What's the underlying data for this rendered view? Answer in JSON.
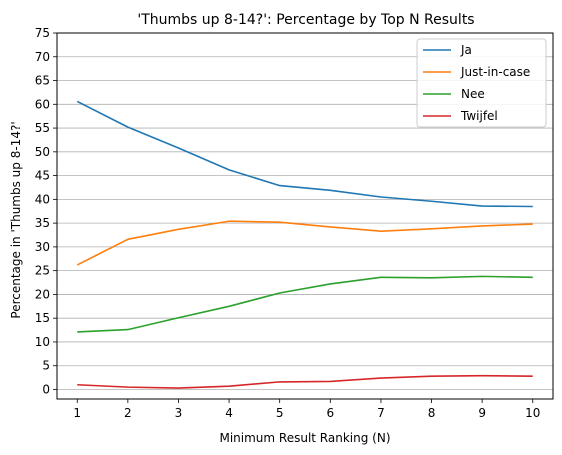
{
  "chart_data": {
    "type": "line",
    "title": "'Thumbs up 8-14?': Percentage by Top N Results",
    "xlabel": "Minimum Result Ranking (N)",
    "ylabel": "Percentage in 'Thumbs up 8-14?'",
    "x": [
      1,
      2,
      3,
      4,
      5,
      6,
      7,
      8,
      9,
      10
    ],
    "xlim": [
      0.6,
      10.4
    ],
    "ylim": [
      -2,
      75
    ],
    "yticks": [
      0,
      5,
      10,
      15,
      20,
      25,
      30,
      35,
      40,
      45,
      50,
      55,
      60,
      65,
      70,
      75
    ],
    "grid": "y",
    "legend_position": "top-right",
    "series": [
      {
        "name": "Ja",
        "color": "#1f77b4",
        "values": [
          60.6,
          55.2,
          50.8,
          46.2,
          42.9,
          41.9,
          40.5,
          39.6,
          38.6,
          38.5
        ]
      },
      {
        "name": "Just-in-case",
        "color": "#ff7f0e",
        "values": [
          26.2,
          31.6,
          33.7,
          35.4,
          35.2,
          34.2,
          33.3,
          33.8,
          34.4,
          34.8
        ]
      },
      {
        "name": "Nee",
        "color": "#2ca02c",
        "values": [
          12.1,
          12.6,
          15.1,
          17.5,
          20.3,
          22.2,
          23.6,
          23.5,
          23.8,
          23.6
        ]
      },
      {
        "name": "Twijfel",
        "color": "#d62728",
        "values": [
          1.0,
          0.5,
          0.3,
          0.7,
          1.6,
          1.7,
          2.4,
          2.8,
          2.9,
          2.8
        ]
      }
    ]
  }
}
